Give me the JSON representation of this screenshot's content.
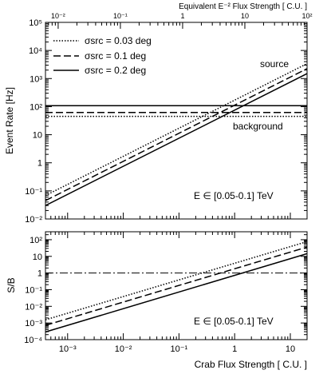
{
  "chart_data": [
    {
      "type": "line",
      "xscale": "log",
      "yscale": "log",
      "xlim": [
        0.0004,
        20
      ],
      "ylim": [
        0.01,
        100000
      ],
      "ylabel": "Event Rate [Hz]",
      "top_axis_label": "Equivalent E⁻² Flux Strength [ C.U. ]",
      "top_axis_ticks": [
        "10⁻²",
        "10⁻¹",
        "1",
        "10",
        "10²"
      ],
      "top_axis_tick_values": [
        0.01,
        0.1,
        1,
        10,
        100
      ],
      "y_ticks": [
        "10⁻²",
        "10⁻¹",
        "1",
        "10",
        "10²",
        "10³",
        "10⁴",
        "10⁵"
      ],
      "y_tick_values": [
        0.01,
        0.1,
        1,
        10,
        100,
        1000,
        10000,
        100000
      ],
      "annotation": "E ∈ [0.05-0.1] TeV",
      "labels": {
        "source": "source",
        "background": "background"
      },
      "grid": false,
      "legend_position": "top-left",
      "series": [
        {
          "name": "σsrc = 0.03 deg",
          "style": "dotted",
          "kind": "source",
          "x": [
            0.0004,
            20
          ],
          "y": [
            0.068,
            3400
          ]
        },
        {
          "name": "σsrc = 0.1 deg",
          "style": "dashed",
          "kind": "source",
          "x": [
            0.0004,
            20
          ],
          "y": [
            0.045,
            2250
          ]
        },
        {
          "name": "σsrc = 0.2 deg",
          "style": "solid",
          "kind": "source",
          "x": [
            0.0004,
            20
          ],
          "y": [
            0.03,
            1500
          ]
        },
        {
          "style": "dotted",
          "kind": "background",
          "x": [
            0.0004,
            20
          ],
          "y": [
            45,
            45
          ]
        },
        {
          "style": "dashed",
          "kind": "background",
          "x": [
            0.0004,
            20
          ],
          "y": [
            62,
            62
          ]
        },
        {
          "style": "solid",
          "kind": "background",
          "x": [
            0.0004,
            20
          ],
          "y": [
            108,
            108
          ]
        }
      ]
    },
    {
      "type": "line",
      "xscale": "log",
      "yscale": "log",
      "xlim": [
        0.0004,
        20
      ],
      "ylim": [
        0.0001,
        300
      ],
      "xlabel": "Crab Flux Strength [ C.U. ]",
      "ylabel": "S/B",
      "x_ticks": [
        "10⁻³",
        "10⁻²",
        "10⁻¹",
        "1",
        "10"
      ],
      "x_tick_values": [
        0.001,
        0.01,
        0.1,
        1,
        10
      ],
      "y_ticks": [
        "10⁻⁴",
        "10⁻³",
        "10⁻²",
        "10⁻¹",
        "1",
        "10",
        "10²"
      ],
      "y_tick_values": [
        0.0001,
        0.001,
        0.01,
        0.1,
        1,
        10,
        100
      ],
      "annotation": "E ∈ [0.05-0.1] TeV",
      "reference_line": {
        "y": 1,
        "style": "dash-dot"
      },
      "grid": false,
      "series": [
        {
          "style": "dotted",
          "x": [
            0.0004,
            20
          ],
          "y": [
            0.00155,
            77
          ]
        },
        {
          "style": "dashed",
          "x": [
            0.0004,
            20
          ],
          "y": [
            0.00072,
            36
          ]
        },
        {
          "style": "solid",
          "x": [
            0.0004,
            20
          ],
          "y": [
            0.00029,
            14.5
          ]
        }
      ]
    }
  ]
}
